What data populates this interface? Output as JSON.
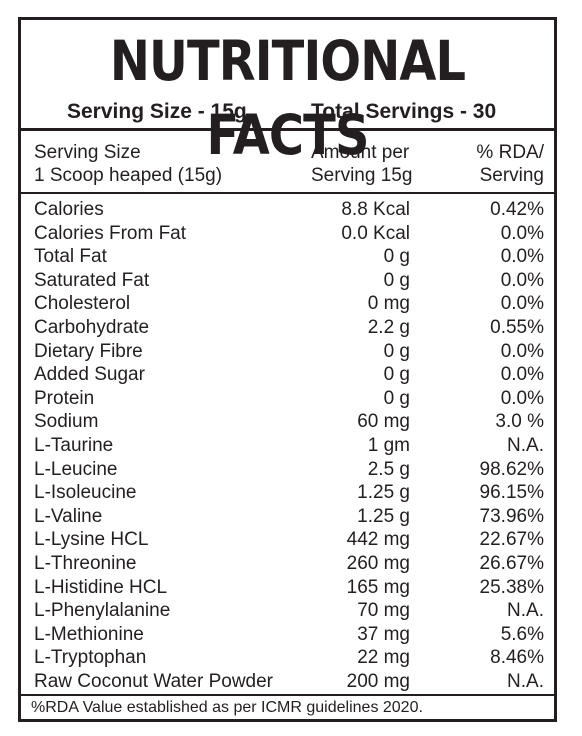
{
  "title": "NUTRITIONAL FACTS",
  "serving": {
    "size": "Serving Size - 15g",
    "total": "Total Servings - 30"
  },
  "header": {
    "left_line1": "Serving Size",
    "left_line2": "1 Scoop heaped (15g)",
    "mid_line1": "Amount per",
    "mid_line2": "Serving 15g",
    "right_line1": "% RDA/",
    "right_line2": "Serving"
  },
  "rows": [
    {
      "name": "Calories",
      "amount": "8.8 Kcal",
      "rda": "0.42%"
    },
    {
      "name": "Calories From Fat",
      "amount": "0.0 Kcal",
      "rda": "0.0%"
    },
    {
      "name": "Total Fat",
      "amount": "0 g",
      "rda": "0.0%"
    },
    {
      "name": "Saturated Fat",
      "amount": "0 g",
      "rda": "0.0%"
    },
    {
      "name": "Cholesterol",
      "amount": "0 mg",
      "rda": "0.0%"
    },
    {
      "name": "Carbohydrate",
      "amount": "2.2 g",
      "rda": "0.55%"
    },
    {
      "name": "Dietary Fibre",
      "amount": "0 g",
      "rda": "0.0%"
    },
    {
      "name": "Added Sugar",
      "amount": "0 g",
      "rda": "0.0%"
    },
    {
      "name": "Protein",
      "amount": "0 g",
      "rda": "0.0%"
    },
    {
      "name": "Sodium",
      "amount": "60 mg",
      "rda": "3.0 %"
    },
    {
      "name": "L-Taurine",
      "amount": "1 gm",
      "rda": "N.A."
    },
    {
      "name": "L-Leucine",
      "amount": "2.5 g",
      "rda": "98.62%"
    },
    {
      "name": "L-Isoleucine",
      "amount": "1.25 g",
      "rda": "96.15%"
    },
    {
      "name": "L-Valine",
      "amount": "1.25 g",
      "rda": "73.96%"
    },
    {
      "name": "L-Lysine HCL",
      "amount": "442 mg",
      "rda": "22.67%"
    },
    {
      "name": "L-Threonine",
      "amount": "260 mg",
      "rda": "26.67%"
    },
    {
      "name": "L-Histidine HCL",
      "amount": "165 mg",
      "rda": "25.38%"
    },
    {
      "name": "L-Phenylalanine",
      "amount": "70 mg",
      "rda": "N.A."
    },
    {
      "name": "L-Methionine",
      "amount": "37 mg",
      "rda": "5.6%"
    },
    {
      "name": "L-Tryptophan",
      "amount": "22 mg",
      "rda": "8.46%"
    },
    {
      "name": "Raw Coconut Water Powder",
      "amount": "200 mg",
      "rda": "N.A."
    }
  ],
  "footnote": "%RDA Value established as per ICMR guidelines 2020."
}
